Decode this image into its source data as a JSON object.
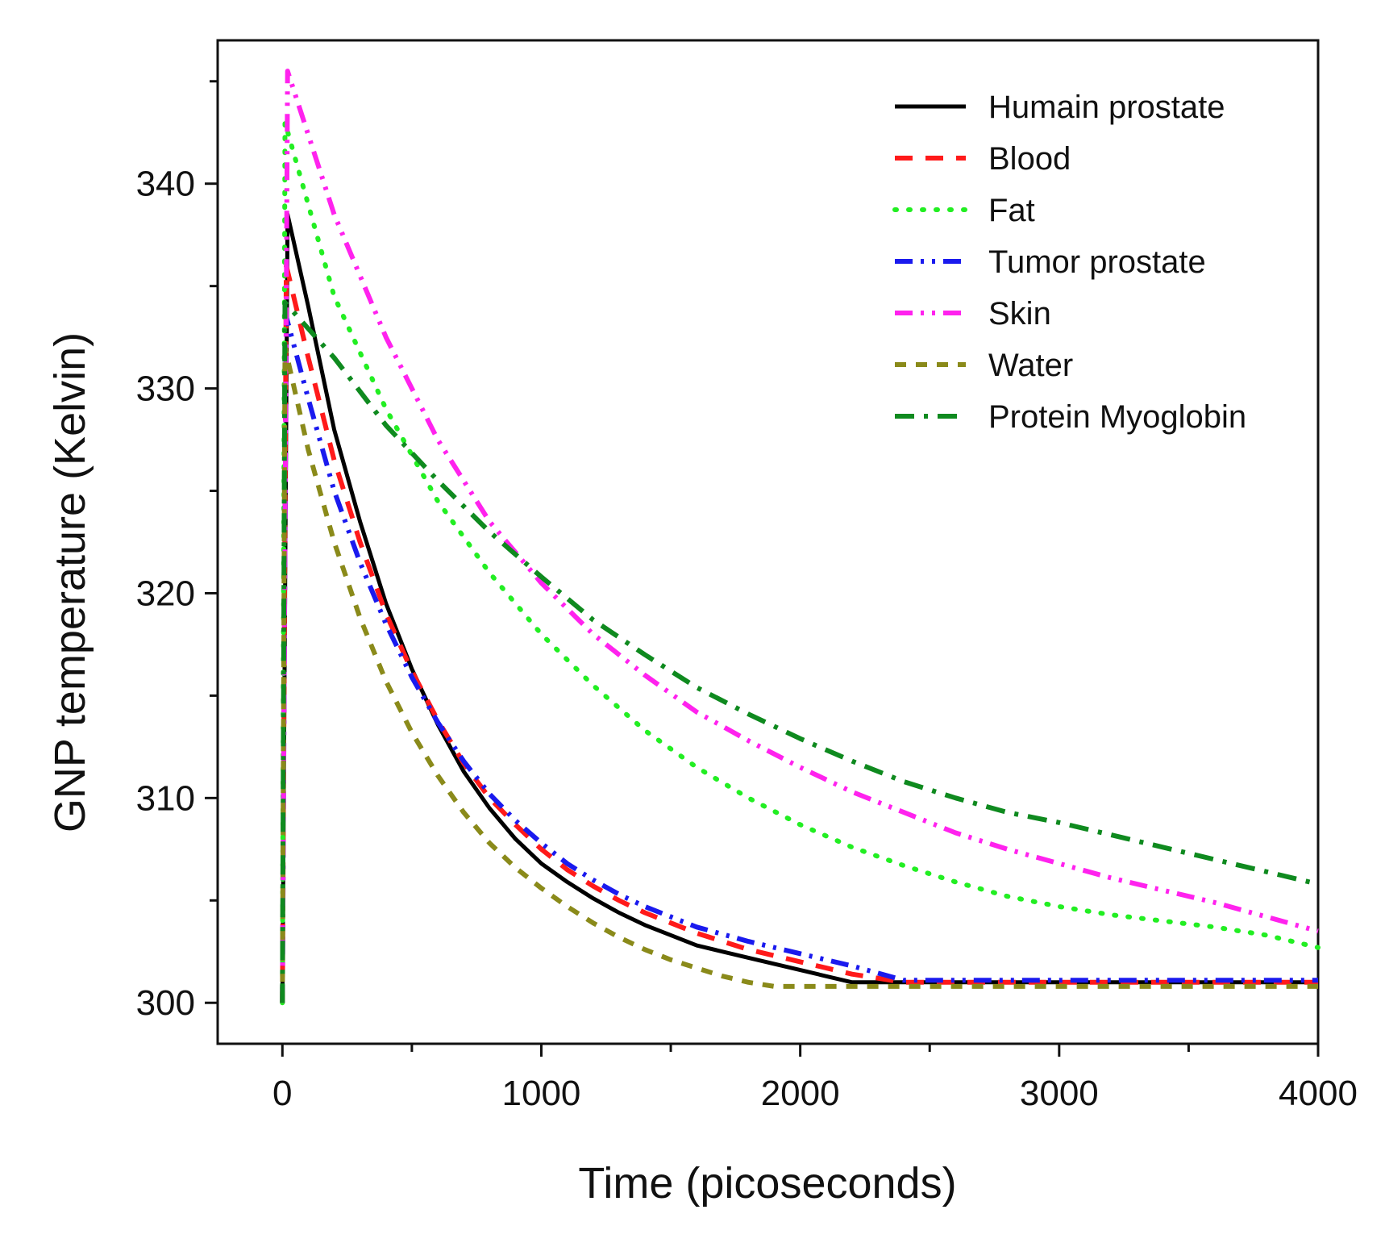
{
  "chart_data": {
    "type": "line",
    "title": "",
    "xlabel": "Time (picoseconds)",
    "ylabel": "GNP temperature (Kelvin)",
    "xlim": [
      -250,
      4000
    ],
    "ylim": [
      298,
      347
    ],
    "x_ticks": [
      0,
      1000,
      2000,
      3000,
      4000
    ],
    "x_tick_labels": [
      "0",
      "1000",
      "2000",
      "3000",
      "4000"
    ],
    "x_minor_ticks": [
      500,
      1500,
      2500,
      3500
    ],
    "y_ticks": [
      300,
      310,
      320,
      330,
      340
    ],
    "y_tick_labels": [
      "300",
      "310",
      "320",
      "330",
      "340"
    ],
    "y_minor_ticks": [
      305,
      315,
      325,
      335,
      345
    ],
    "grid": false,
    "legend_position": "top-right",
    "series": [
      {
        "name": "Humain prostate",
        "color": "#000000",
        "dash": "solid",
        "x": [
          0,
          20,
          100,
          200,
          300,
          400,
          500,
          600,
          700,
          800,
          900,
          1000,
          1100,
          1200,
          1300,
          1400,
          1500,
          1600,
          1800,
          2000,
          2200,
          2300,
          2500,
          3000,
          3500,
          4000
        ],
        "y": [
          300,
          338.5,
          334,
          328,
          323.5,
          319.5,
          316.3,
          313.6,
          311.3,
          309.5,
          308,
          306.8,
          305.9,
          305.1,
          304.4,
          303.8,
          303.3,
          302.8,
          302.2,
          301.6,
          301,
          301,
          301,
          301,
          301,
          301
        ]
      },
      {
        "name": "Blood",
        "color": "#ff1a1a",
        "dash": "dashed",
        "x": [
          0,
          15,
          100,
          200,
          300,
          400,
          500,
          600,
          700,
          800,
          900,
          1000,
          1100,
          1200,
          1300,
          1400,
          1500,
          1600,
          1800,
          2000,
          2200,
          2400,
          2600,
          3000,
          3500,
          4000
        ],
        "y": [
          300,
          336,
          331.5,
          326.5,
          322.5,
          319,
          316.2,
          313.8,
          311.7,
          310,
          308.7,
          307.5,
          306.5,
          305.7,
          305,
          304.4,
          303.9,
          303.4,
          302.6,
          302,
          301.4,
          301,
          301,
          301,
          301,
          301
        ]
      },
      {
        "name": "Fat",
        "color": "#22ee22",
        "dash": "dotted",
        "x": [
          0,
          10,
          200,
          400,
          600,
          800,
          1000,
          1200,
          1400,
          1600,
          1800,
          2000,
          2200,
          2400,
          2600,
          2800,
          3000,
          3200,
          3400,
          3600,
          3800,
          4000
        ],
        "y": [
          300,
          343,
          334.5,
          329,
          324.5,
          321,
          318,
          315.5,
          313.3,
          311.5,
          310,
          308.7,
          307.6,
          306.7,
          305.9,
          305.2,
          304.7,
          304.3,
          304,
          303.7,
          303.3,
          302.7
        ]
      },
      {
        "name": "Tumor prostate",
        "color": "#1a1aee",
        "dash": "dashdotdot",
        "x": [
          0,
          15,
          100,
          200,
          300,
          400,
          500,
          600,
          700,
          800,
          900,
          1000,
          1100,
          1200,
          1300,
          1400,
          1500,
          1600,
          1800,
          2000,
          2200,
          2400,
          2600,
          3000,
          3500,
          4000
        ],
        "y": [
          300,
          333.5,
          329.5,
          325,
          321.5,
          318.5,
          315.9,
          313.7,
          311.8,
          310.2,
          308.9,
          307.8,
          306.8,
          306,
          305.3,
          304.7,
          304.2,
          303.7,
          303,
          302.4,
          301.8,
          301.1,
          301.1,
          301.1,
          301.1,
          301.1
        ]
      },
      {
        "name": "Skin",
        "color": "#ff22ee",
        "dash": "dashdotdot",
        "x": [
          0,
          20,
          200,
          400,
          600,
          800,
          1000,
          1200,
          1400,
          1600,
          1800,
          2000,
          2200,
          2400,
          2600,
          2800,
          3000,
          3200,
          3400,
          3600,
          3800,
          4000
        ],
        "y": [
          300,
          345.5,
          338.5,
          332.5,
          327.5,
          323.5,
          320.5,
          318,
          316,
          314.2,
          312.8,
          311.5,
          310.3,
          309.3,
          308.3,
          307.5,
          306.8,
          306.1,
          305.5,
          304.9,
          304.2,
          303.5
        ]
      },
      {
        "name": "Water",
        "color": "#8a8a1a",
        "dash": "shortdash",
        "x": [
          0,
          10,
          100,
          200,
          300,
          400,
          500,
          600,
          700,
          800,
          900,
          1000,
          1100,
          1200,
          1300,
          1400,
          1500,
          1600,
          1700,
          1800,
          1900,
          2000,
          2500,
          3000,
          3500,
          4000
        ],
        "y": [
          300,
          332,
          327,
          322.5,
          318.8,
          315.7,
          313.2,
          311.1,
          309.3,
          307.8,
          306.6,
          305.6,
          304.7,
          303.9,
          303.2,
          302.6,
          302.1,
          301.7,
          301.3,
          301,
          300.8,
          300.8,
          300.8,
          300.8,
          300.8,
          300.8
        ]
      },
      {
        "name": "Protein Myoglobin",
        "color": "#0f8a1f",
        "dash": "dashdot",
        "x": [
          0,
          10,
          200,
          400,
          600,
          800,
          1000,
          1200,
          1400,
          1600,
          1800,
          2000,
          2200,
          2400,
          2600,
          2800,
          3000,
          3200,
          3400,
          3600,
          3800,
          4000
        ],
        "y": [
          300,
          334.2,
          331.5,
          328.2,
          325.5,
          323,
          320.8,
          318.7,
          317,
          315.4,
          314.1,
          312.9,
          311.8,
          310.8,
          310,
          309.3,
          308.8,
          308.2,
          307.6,
          307,
          306.4,
          305.8
        ]
      }
    ]
  }
}
